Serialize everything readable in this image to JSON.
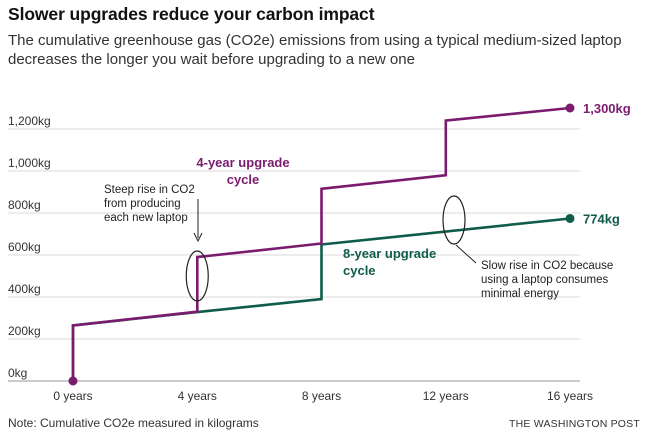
{
  "header": {
    "title": "Slower upgrades reduce your carbon impact",
    "subtitle": "The cumulative greenhouse gas (CO2e) emissions from using a typical medium-sized laptop decreases the longer you wait before upgrading to a new one"
  },
  "footer": {
    "note": "Note: Cumulative CO2e measured in kilograms",
    "source": "THE WASHINGTON POST"
  },
  "chart_data": {
    "type": "line",
    "title": "Slower upgrades reduce your carbon impact",
    "subtitle": "The cumulative greenhouse gas (CO2e) emissions from using a typical medium-sized laptop decreases the longer you wait before upgrading to a new one",
    "xlabel": "",
    "ylabel": "",
    "x_ticks": [
      {
        "value": 0,
        "label": "0 years"
      },
      {
        "value": 4,
        "label": "4 years"
      },
      {
        "value": 8,
        "label": "8 years"
      },
      {
        "value": 12,
        "label": "12 years"
      },
      {
        "value": 16,
        "label": "16 years"
      }
    ],
    "y_ticks": [
      {
        "value": 0,
        "label": "0kg"
      },
      {
        "value": 200,
        "label": "200kg"
      },
      {
        "value": 400,
        "label": "400kg"
      },
      {
        "value": 600,
        "label": "600kg"
      },
      {
        "value": 800,
        "label": "800kg"
      },
      {
        "value": 1000,
        "label": "1,000kg"
      },
      {
        "value": 1200,
        "label": "1,200kg"
      }
    ],
    "xlim": [
      0,
      16
    ],
    "ylim": [
      0,
      1300
    ],
    "grid": "horizontal",
    "series": [
      {
        "name": "4-year upgrade cycle",
        "label_lines": [
          "4-year upgrade",
          "cycle"
        ],
        "color": "#7b1b6e",
        "end_label": "1,300kg",
        "points": [
          [
            0,
            0
          ],
          [
            0,
            265
          ],
          [
            4,
            330
          ],
          [
            4,
            590
          ],
          [
            8,
            655
          ],
          [
            8,
            915
          ],
          [
            12,
            980
          ],
          [
            12,
            1240
          ],
          [
            16,
            1300
          ]
        ]
      },
      {
        "name": "8-year upgrade cycle",
        "label_lines": [
          "8-year upgrade",
          "cycle"
        ],
        "color": "#0f5c4a",
        "end_label": "774kg",
        "points": [
          [
            0,
            0
          ],
          [
            0,
            265
          ],
          [
            4,
            328
          ],
          [
            8,
            390
          ],
          [
            8,
            650
          ],
          [
            16,
            774
          ]
        ]
      }
    ],
    "annotations": [
      {
        "lines": [
          "Steep rise in CO2",
          "from producing",
          "each new laptop"
        ]
      },
      {
        "lines": [
          "Slow rise in CO2 because",
          "using a laptop consumes",
          "minimal energy"
        ]
      }
    ]
  }
}
